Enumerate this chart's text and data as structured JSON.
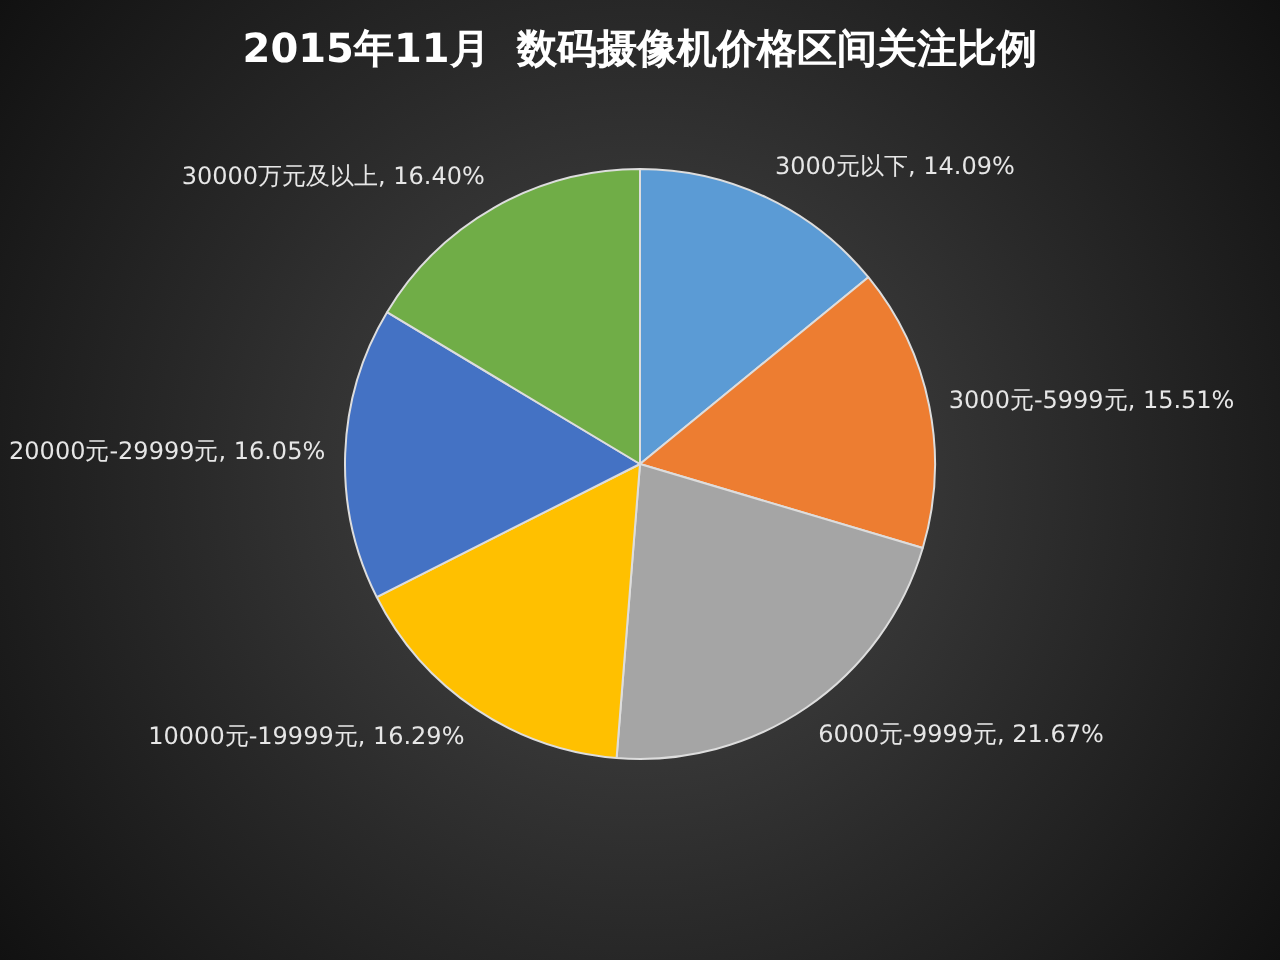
{
  "chart_data": {
    "type": "pie",
    "title": "2015年11月  数码摄像机价格区间关注比例",
    "categories": [
      "3000元以下",
      "3000元-5999元",
      "6000元-9999元",
      "10000元-19999元",
      "20000元-29999元",
      "30000万元及以上"
    ],
    "values": [
      14.09,
      15.51,
      21.67,
      16.29,
      16.05,
      16.4
    ],
    "value_labels": [
      "14.09%",
      "15.51%",
      "21.67%",
      "16.29%",
      "16.05%",
      "16.40%"
    ],
    "colors": [
      "#5b9bd5",
      "#ed7d31",
      "#a5a5a5",
      "#ffc000",
      "#4472c4",
      "#70ad47"
    ],
    "legend": false
  }
}
